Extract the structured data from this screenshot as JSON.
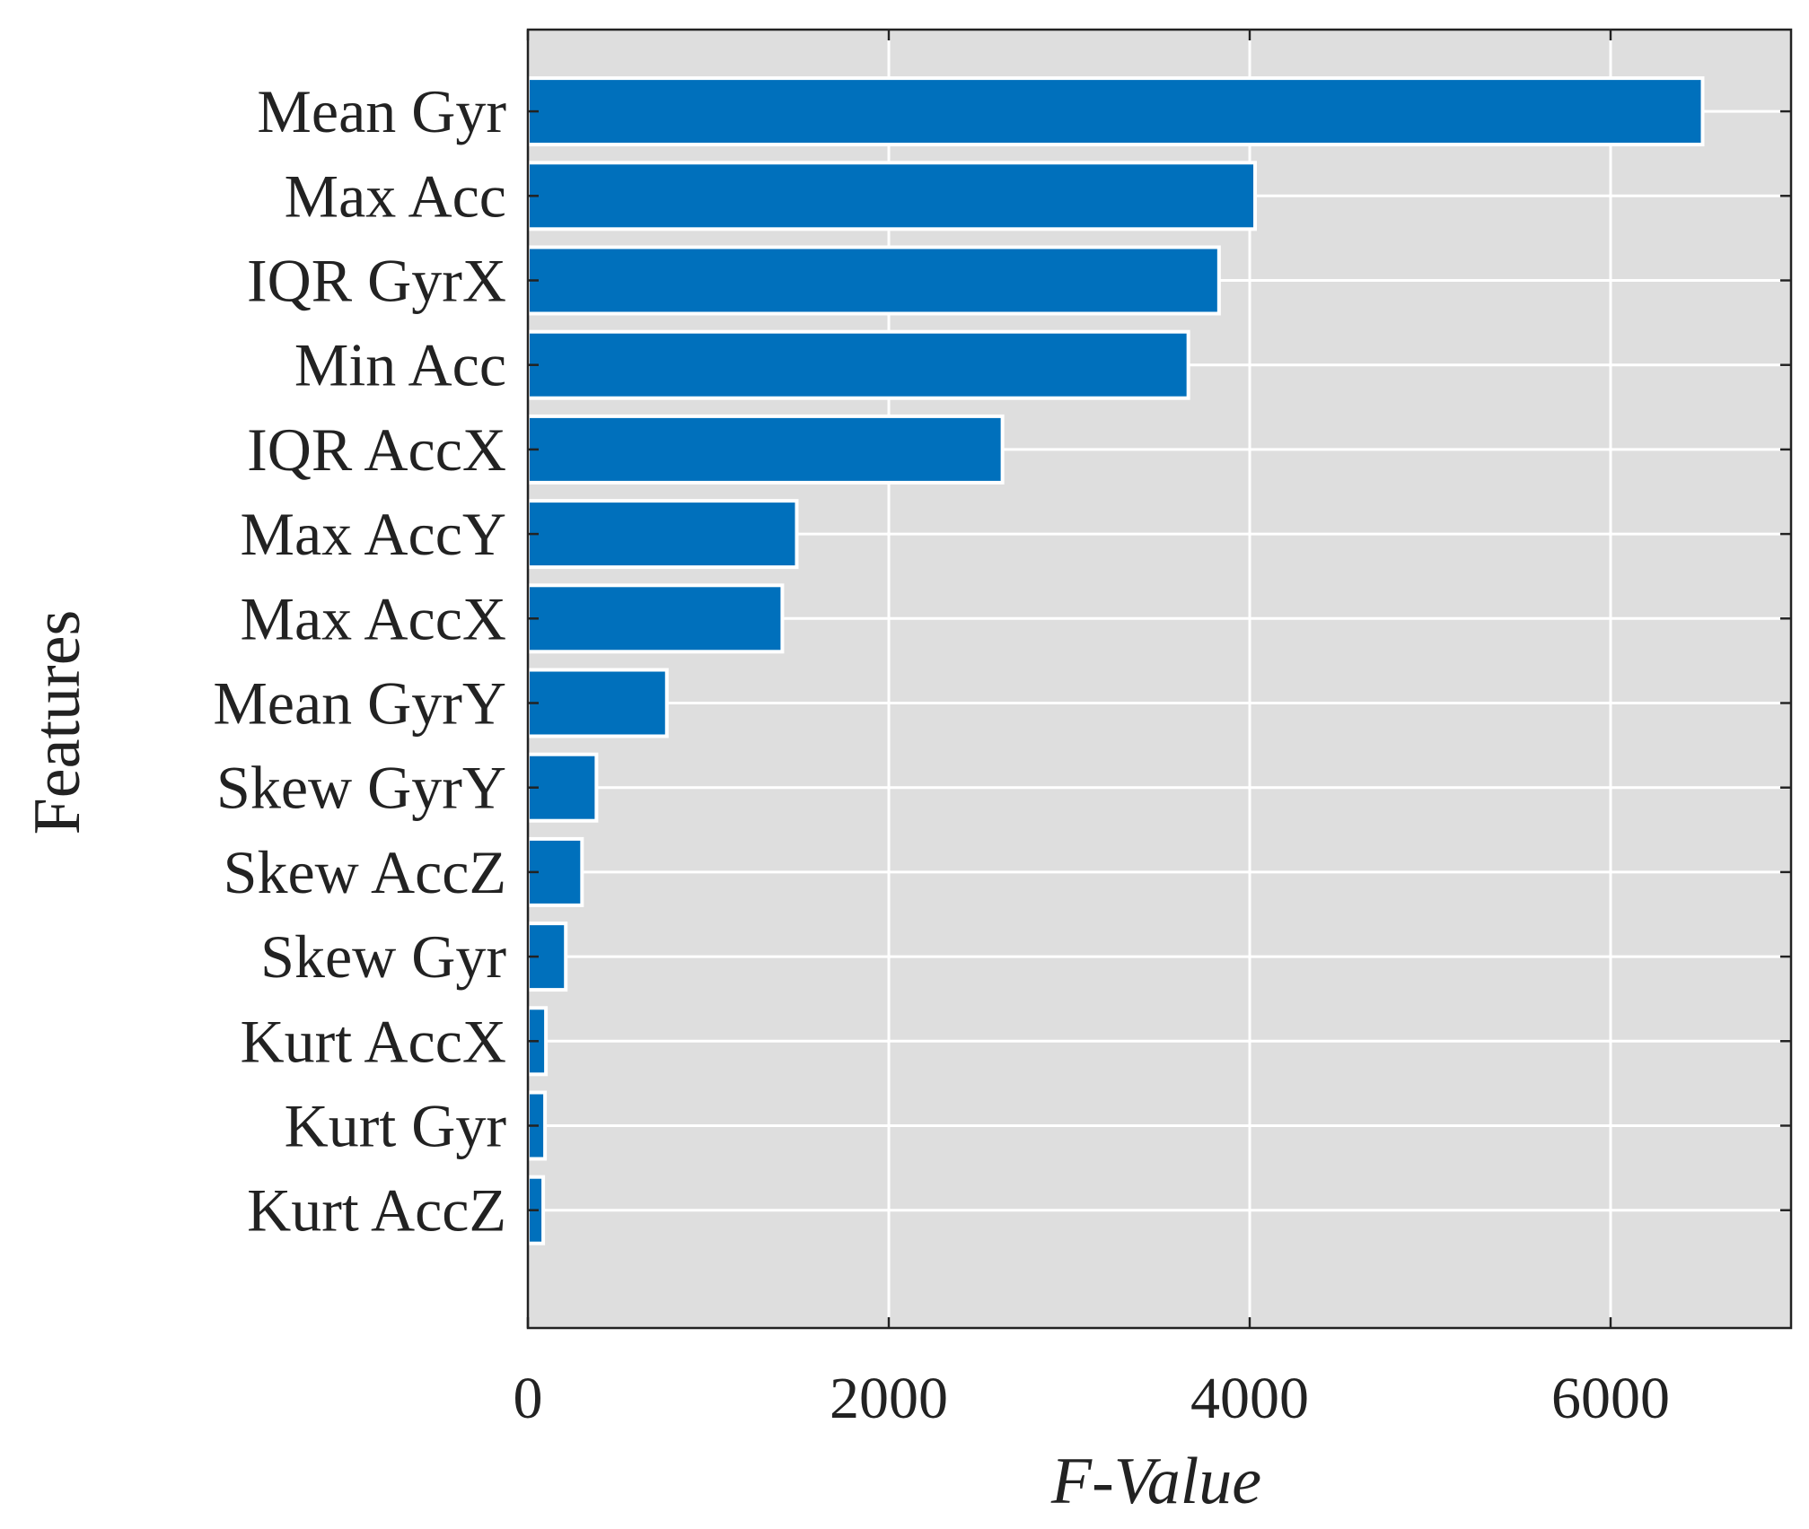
{
  "chart_data": {
    "type": "bar",
    "orientation": "horizontal",
    "categories": [
      "Mean Gyr",
      "Max Acc",
      "IQR GyrX",
      "Min Acc",
      "IQR AccX",
      "Max AccY",
      "Max AccX",
      "Mean GyrY",
      "Skew GyrY",
      "Skew AccZ",
      "Skew Gyr",
      "Kurt AccX",
      "Kurt Gyr",
      "Kurt AccZ"
    ],
    "values": [
      6510,
      4030,
      3830,
      3660,
      2630,
      1490,
      1410,
      770,
      380,
      300,
      210,
      100,
      95,
      85
    ],
    "xlabel": "F-Value",
    "ylabel": "Features",
    "xlim": [
      0,
      7000
    ],
    "xticks": [
      0,
      2000,
      4000,
      6000
    ],
    "xtick_labels": [
      "0",
      "2000",
      "4000",
      "6000"
    ],
    "grid": true,
    "colors": {
      "bar": "#0070bc",
      "plot_background": "#dedede",
      "grid": "#ffffff",
      "axis": "#222222"
    }
  }
}
